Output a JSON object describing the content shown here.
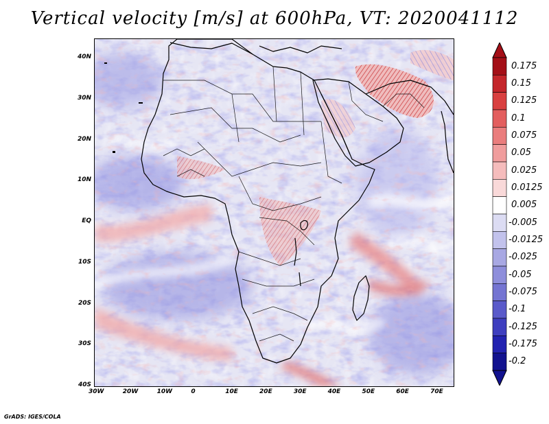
{
  "title": "Vertical velocity [m/s] at 600hPa, VT: 2020041112",
  "credit": "GrADS: IGES/COLA",
  "y_axis_labels": [
    "40N",
    "30N",
    "20N",
    "10N",
    "EQ",
    "10S",
    "20S",
    "30S",
    "40S"
  ],
  "x_axis_labels": [
    "30W",
    "20W",
    "10W",
    "0",
    "10E",
    "20E",
    "30E",
    "40E",
    "50E",
    "60E",
    "70E"
  ],
  "colorbar": {
    "levels": [
      "0.175",
      "0.15",
      "0.125",
      "0.1",
      "0.075",
      "0.05",
      "0.025",
      "0.0125",
      "0.005",
      "-0.005",
      "-0.0125",
      "-0.025",
      "-0.05",
      "-0.075",
      "-0.1",
      "-0.125",
      "-0.175",
      "-0.2"
    ],
    "colors": [
      "#a40f17",
      "#c4262b",
      "#d94040",
      "#e35e5e",
      "#ea7d7d",
      "#f09d9d",
      "#f5bcbc",
      "#f9d9d9",
      "#ffffff",
      "#dcdcf3",
      "#c2c2ec",
      "#a8a8e3",
      "#8e8edb",
      "#7474d2",
      "#5a5aca",
      "#3e3ebf",
      "#2222b0",
      "#12128f"
    ],
    "top_color": "#a40f17",
    "bottom_color": "#12128f"
  },
  "field_colors": {
    "background": "#e6e6f4",
    "weak_down": "#ffffff",
    "blue": "#a9a9e6",
    "blue_strong": "#6e6ed6",
    "red": "#f3b6b6",
    "red_strong": "#d24040"
  }
}
